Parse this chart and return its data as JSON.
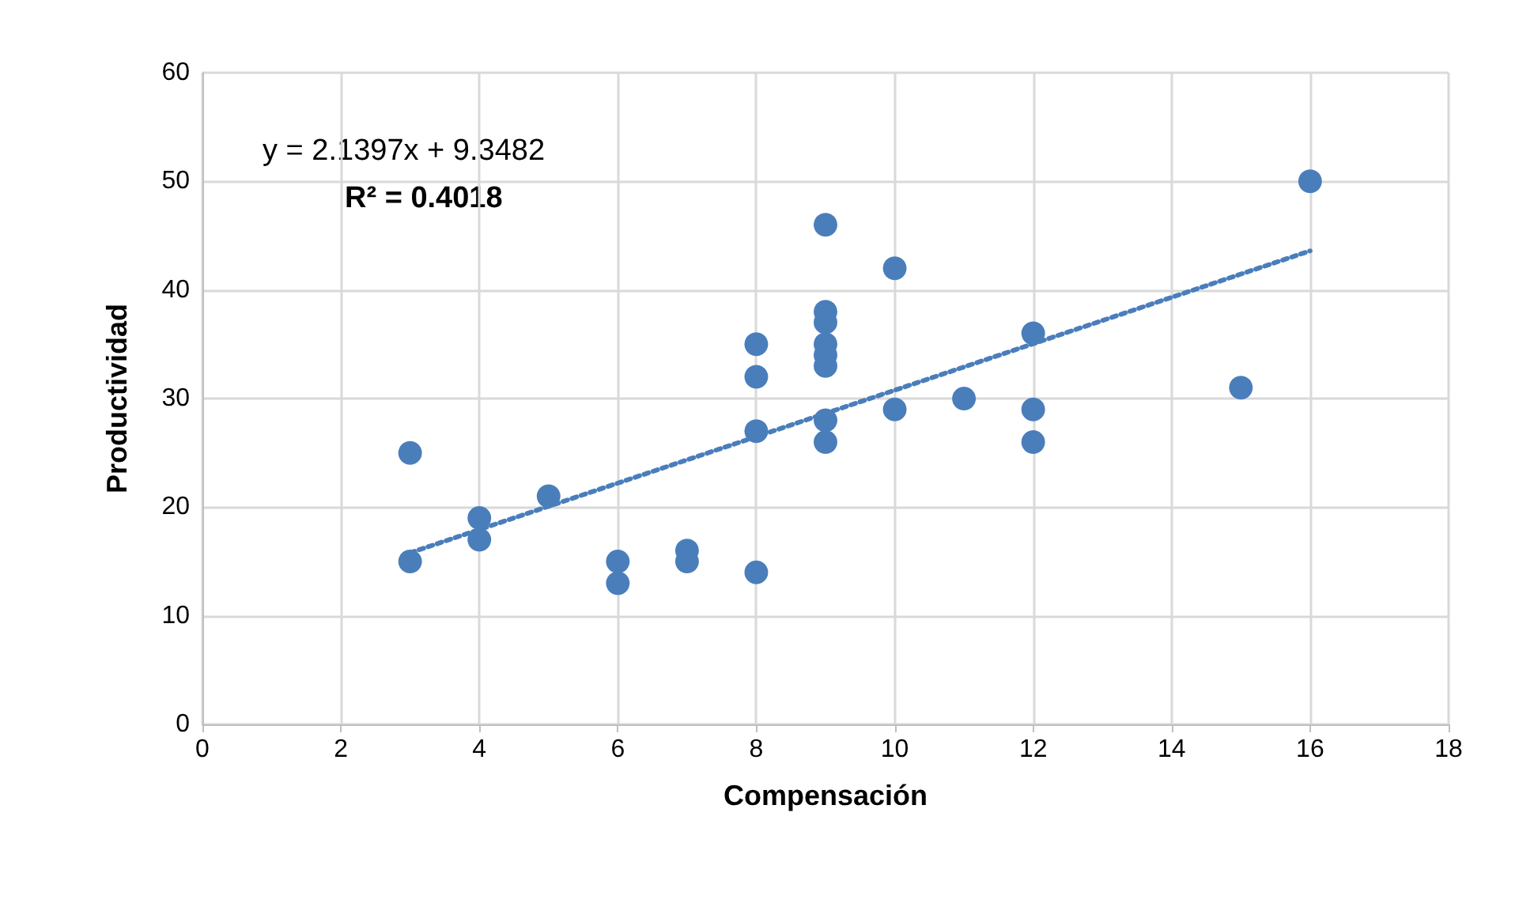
{
  "chart_data": {
    "type": "scatter",
    "xlabel": "Compensación",
    "ylabel": "Productividad",
    "xlim": [
      0,
      18
    ],
    "xticks": [
      0,
      2,
      4,
      6,
      8,
      10,
      12,
      14,
      16,
      18
    ],
    "ylim": [
      0,
      60
    ],
    "yticks": [
      0,
      10,
      20,
      30,
      40,
      50,
      60
    ],
    "grid": true,
    "series": [
      {
        "marker": "circle",
        "color": "#4a7ebb",
        "x": [
          3,
          3,
          4,
          4,
          5,
          6,
          6,
          7,
          7,
          8,
          8,
          8,
          8,
          9,
          9,
          9,
          9,
          9,
          9,
          9,
          9,
          10,
          10,
          11,
          12,
          12,
          12,
          15,
          16
        ],
        "values": [
          25,
          15,
          19,
          17,
          21,
          15,
          13,
          16,
          15,
          35,
          32,
          27,
          14,
          46,
          38,
          37,
          35,
          34,
          33,
          28,
          26,
          42,
          29,
          30,
          36,
          29,
          26,
          31,
          50
        ]
      },
      {
        "type": "line",
        "color": "#4a7ebb",
        "line_style": "dotted",
        "x": [
          3,
          16
        ],
        "values": [
          15.8,
          43.6
        ]
      }
    ],
    "annotations": [
      "y = 2.1397x + 9.3482",
      "R² = 0.4018"
    ]
  }
}
